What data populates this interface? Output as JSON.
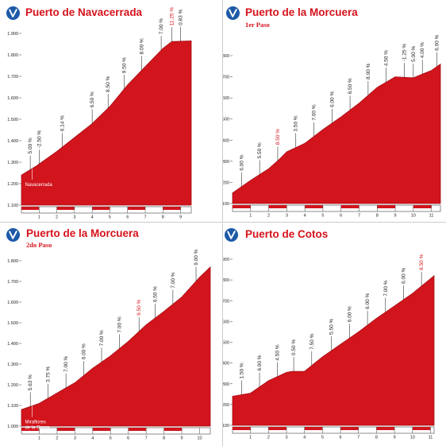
{
  "colors": {
    "fill": "#d2141c",
    "fill_edge": "#a40e15",
    "accent_label": "#d6121b",
    "axis_text": "#222222",
    "logo": "#1d5aa8"
  },
  "icon": "vuelta-logo-icon",
  "chart_data": [
    {
      "type": "area",
      "title": "Puerto de Navacerrada",
      "subtitle": "",
      "y_ticks": [
        "1.100",
        "1.200",
        "1.300",
        "1.400",
        "1.500",
        "1.600",
        "1.700",
        "1.800",
        "1.900"
      ],
      "ylim": [
        1100,
        1900
      ],
      "x_ticks": [
        "1",
        "2",
        "3",
        "4",
        "5",
        "6",
        "7",
        "8",
        "9"
      ],
      "xlim": [
        0,
        9.6
      ],
      "profile": [
        [
          0,
          1240
        ],
        [
          0.8,
          1280
        ],
        [
          2,
          1350
        ],
        [
          3,
          1415
        ],
        [
          4,
          1480
        ],
        [
          5,
          1560
        ],
        [
          6,
          1660
        ],
        [
          7,
          1745
        ],
        [
          8,
          1830
        ],
        [
          8.5,
          1862
        ],
        [
          9.6,
          1865
        ]
      ],
      "gradients": [
        {
          "x": 0.5,
          "label": "5.00 %",
          "red": false
        },
        {
          "x": 1.0,
          "label": "-2.50 %",
          "red": false
        },
        {
          "x": 2.3,
          "label": "6.14 %",
          "red": false
        },
        {
          "x": 4.0,
          "label": "6.50 %",
          "red": false
        },
        {
          "x": 4.9,
          "label": "8.50 %",
          "red": false
        },
        {
          "x": 5.8,
          "label": "9.50 %",
          "red": false
        },
        {
          "x": 6.8,
          "label": "8.00 %",
          "red": false
        },
        {
          "x": 7.9,
          "label": "7.00 %",
          "red": false
        },
        {
          "x": 8.5,
          "label": "11.25 %",
          "red": true
        },
        {
          "x": 9.0,
          "label": "0.83 %",
          "red": false
        }
      ],
      "start_label": [
        "Navacerrada"
      ]
    },
    {
      "type": "area",
      "title": "Puerto de la Morcuera",
      "subtitle": "1er Paso",
      "y_ticks": [
        "1.100",
        "1.200",
        "1.300",
        "1.400",
        "1.500",
        "1.600",
        "1.700",
        "1.800"
      ],
      "ylim": [
        1100,
        1800
      ],
      "x_ticks": [
        "1",
        "2",
        "3",
        "4",
        "5",
        "6",
        "7",
        "8",
        "9",
        "10",
        "11"
      ],
      "xlim": [
        0,
        11.5
      ],
      "profile": [
        [
          0,
          1150
        ],
        [
          1,
          1210
        ],
        [
          2,
          1265
        ],
        [
          2.6,
          1310
        ],
        [
          3,
          1345
        ],
        [
          4,
          1385
        ],
        [
          5,
          1450
        ],
        [
          6,
          1510
        ],
        [
          7,
          1575
        ],
        [
          8,
          1650
        ],
        [
          9,
          1700
        ],
        [
          10,
          1695
        ],
        [
          11,
          1730
        ],
        [
          11.5,
          1760
        ]
      ],
      "gradients": [
        {
          "x": 0.5,
          "label": "6.00 %",
          "red": false
        },
        {
          "x": 1.5,
          "label": "5.50 %",
          "red": false
        },
        {
          "x": 2.5,
          "label": "8.50 %",
          "red": true
        },
        {
          "x": 3.5,
          "label": "3.50 %",
          "red": false
        },
        {
          "x": 4.5,
          "label": "7.00 %",
          "red": false
        },
        {
          "x": 5.5,
          "label": "6.00 %",
          "red": false
        },
        {
          "x": 6.5,
          "label": "6.50 %",
          "red": false
        },
        {
          "x": 7.5,
          "label": "8.00 %",
          "red": false
        },
        {
          "x": 8.5,
          "label": "4.50 %",
          "red": false
        },
        {
          "x": 9.5,
          "label": "-1.25 %",
          "red": false
        },
        {
          "x": 10.0,
          "label": "5.00 %",
          "red": false
        },
        {
          "x": 10.5,
          "label": "4.00 %",
          "red": false
        },
        {
          "x": 11.3,
          "label": "6.00 %",
          "red": false
        }
      ],
      "start_label": []
    },
    {
      "type": "area",
      "title": "Puerto de la Morcuera",
      "subtitle": "2do Paso",
      "y_ticks": [
        "1.000",
        "1.100",
        "1.200",
        "1.300",
        "1.400",
        "1.500",
        "1.600",
        "1.700",
        "1.800"
      ],
      "ylim": [
        1000,
        1800
      ],
      "x_ticks": [
        "1",
        "2",
        "3",
        "4",
        "5",
        "6",
        "7",
        "8",
        "9",
        "10"
      ],
      "xlim": [
        0,
        10.6
      ],
      "profile": [
        [
          0,
          1080
        ],
        [
          1,
          1110
        ],
        [
          2,
          1160
        ],
        [
          3,
          1210
        ],
        [
          4,
          1280
        ],
        [
          5,
          1340
        ],
        [
          6,
          1410
        ],
        [
          7,
          1490
        ],
        [
          8,
          1555
        ],
        [
          9,
          1625
        ],
        [
          10,
          1720
        ],
        [
          10.6,
          1770
        ]
      ],
      "gradients": [
        {
          "x": 0.5,
          "label": "5.63 %",
          "red": false
        },
        {
          "x": 1.5,
          "label": "3.75 %",
          "red": false
        },
        {
          "x": 2.5,
          "label": "7.00 %",
          "red": false
        },
        {
          "x": 3.5,
          "label": "6.00 %",
          "red": false
        },
        {
          "x": 4.5,
          "label": "7.00 %",
          "red": false
        },
        {
          "x": 5.5,
          "label": "7.00 %",
          "red": false
        },
        {
          "x": 6.6,
          "label": "9.50 %",
          "red": true
        },
        {
          "x": 7.5,
          "label": "6.50 %",
          "red": false
        },
        {
          "x": 8.5,
          "label": "7.00 %",
          "red": false
        },
        {
          "x": 9.8,
          "label": "9.00 %",
          "red": false
        }
      ],
      "start_label": [
        "Miraflores",
        "de la Sierra"
      ]
    },
    {
      "type": "area",
      "title": "Puerto de Cotos",
      "subtitle": "",
      "y_ticks": [
        "1.100",
        "1.200",
        "1.300",
        "1.400",
        "1.500",
        "1.600",
        "1.700",
        "1.800",
        "1.900"
      ],
      "ylim": [
        1100,
        1900
      ],
      "x_ticks": [
        "1",
        "2",
        "3",
        "4",
        "5",
        "6",
        "7",
        "8",
        "9",
        "10",
        "11"
      ],
      "xlim": [
        0,
        11.2
      ],
      "profile": [
        [
          0,
          1240
        ],
        [
          1,
          1255
        ],
        [
          2,
          1315
        ],
        [
          3,
          1355
        ],
        [
          3.3,
          1360
        ],
        [
          4,
          1360
        ],
        [
          5,
          1430
        ],
        [
          6,
          1490
        ],
        [
          7,
          1550
        ],
        [
          8,
          1615
        ],
        [
          9,
          1675
        ],
        [
          10,
          1735
        ],
        [
          11.2,
          1820
        ]
      ],
      "gradients": [
        {
          "x": 0.5,
          "label": "1.50 %",
          "red": false
        },
        {
          "x": 1.5,
          "label": "6.00 %",
          "red": false
        },
        {
          "x": 2.5,
          "label": "4.50 %",
          "red": false
        },
        {
          "x": 3.4,
          "label": "0.50 %",
          "red": false
        },
        {
          "x": 4.4,
          "label": "7.50 %",
          "red": false
        },
        {
          "x": 5.5,
          "label": "5.50 %",
          "red": false
        },
        {
          "x": 6.5,
          "label": "6.00 %",
          "red": false
        },
        {
          "x": 7.5,
          "label": "6.00 %",
          "red": false
        },
        {
          "x": 8.5,
          "label": "7.00 %",
          "red": false
        },
        {
          "x": 9.5,
          "label": "6.00 %",
          "red": false
        },
        {
          "x": 10.5,
          "label": "8.50 %",
          "red": true
        }
      ],
      "start_label": []
    }
  ]
}
